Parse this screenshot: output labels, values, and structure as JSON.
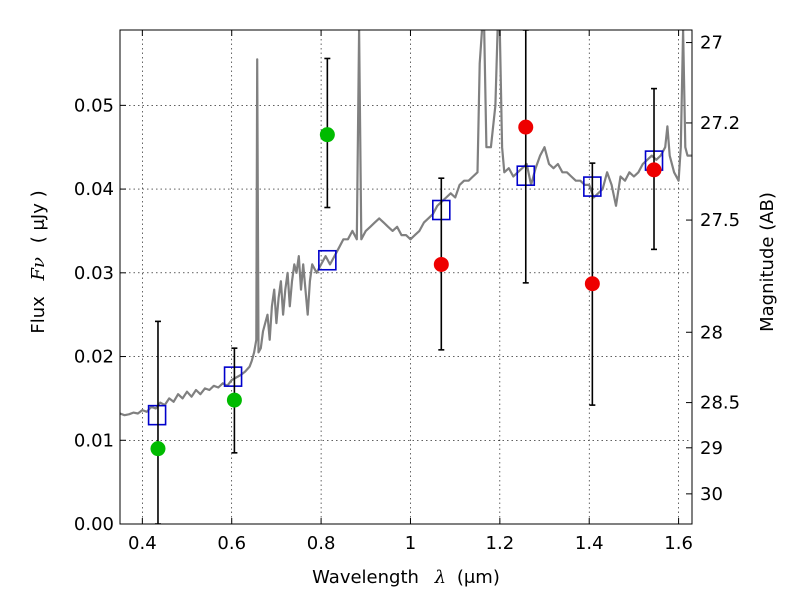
{
  "chart_data": {
    "type": "scatter",
    "xlabel": {
      "text": "Wavelength",
      "symbol": "λ",
      "unit": "(μm)"
    },
    "ylabel": {
      "text": "Flux",
      "symbol": "Fν",
      "unit": "( μJy )"
    },
    "y2label": "Magnitude (AB)",
    "xlim": [
      0.35,
      1.63
    ],
    "ylim": [
      0.0,
      0.059
    ],
    "grid": true,
    "x_ticks": [
      0.4,
      0.6,
      0.8,
      1.0,
      1.2,
      1.4,
      1.6
    ],
    "x_tick_labels": [
      "0.4",
      "0.6",
      "0.8",
      "1",
      "1.2",
      "1.4",
      "1.6"
    ],
    "y_ticks": [
      0.0,
      0.01,
      0.02,
      0.03,
      0.04,
      0.05
    ],
    "y_tick_labels": [
      "0.00",
      "0.01",
      "0.02",
      "0.03",
      "0.04",
      "0.05"
    ],
    "y2_ticks": [
      {
        "flux": 0.0575,
        "label": "27"
      },
      {
        "flux": 0.0479,
        "label": "27.2"
      },
      {
        "flux": 0.0363,
        "label": "27.5"
      },
      {
        "flux": 0.0229,
        "label": "28"
      },
      {
        "flux": 0.0145,
        "label": "28.5"
      },
      {
        "flux": 0.0091,
        "label": "29"
      },
      {
        "flux": 0.0036,
        "label": "30"
      }
    ],
    "series": [
      {
        "kind": "line",
        "color": "#808080",
        "points": [
          [
            0.35,
            0.0132
          ],
          [
            0.36,
            0.013
          ],
          [
            0.37,
            0.0131
          ],
          [
            0.38,
            0.0133
          ],
          [
            0.39,
            0.0132
          ],
          [
            0.4,
            0.0136
          ],
          [
            0.41,
            0.0134
          ],
          [
            0.42,
            0.014
          ],
          [
            0.43,
            0.0138
          ],
          [
            0.44,
            0.0145
          ],
          [
            0.45,
            0.0142
          ],
          [
            0.46,
            0.015
          ],
          [
            0.47,
            0.0146
          ],
          [
            0.48,
            0.0155
          ],
          [
            0.49,
            0.015
          ],
          [
            0.5,
            0.0158
          ],
          [
            0.51,
            0.0152
          ],
          [
            0.52,
            0.016
          ],
          [
            0.53,
            0.0155
          ],
          [
            0.54,
            0.0162
          ],
          [
            0.55,
            0.016
          ],
          [
            0.56,
            0.0165
          ],
          [
            0.57,
            0.0163
          ],
          [
            0.58,
            0.0168
          ],
          [
            0.59,
            0.0165
          ],
          [
            0.6,
            0.0172
          ],
          [
            0.61,
            0.0175
          ],
          [
            0.62,
            0.0178
          ],
          [
            0.63,
            0.0182
          ],
          [
            0.64,
            0.0188
          ],
          [
            0.645,
            0.0195
          ],
          [
            0.65,
            0.0205
          ],
          [
            0.655,
            0.022
          ],
          [
            0.657,
            0.0555
          ],
          [
            0.66,
            0.0205
          ],
          [
            0.665,
            0.021
          ],
          [
            0.67,
            0.023
          ],
          [
            0.675,
            0.024
          ],
          [
            0.68,
            0.025
          ],
          [
            0.685,
            0.022
          ],
          [
            0.69,
            0.026
          ],
          [
            0.695,
            0.028
          ],
          [
            0.7,
            0.024
          ],
          [
            0.705,
            0.027
          ],
          [
            0.71,
            0.029
          ],
          [
            0.715,
            0.025
          ],
          [
            0.72,
            0.028
          ],
          [
            0.725,
            0.03
          ],
          [
            0.73,
            0.026
          ],
          [
            0.735,
            0.029
          ],
          [
            0.74,
            0.031
          ],
          [
            0.745,
            0.03
          ],
          [
            0.75,
            0.032
          ],
          [
            0.755,
            0.028
          ],
          [
            0.76,
            0.031
          ],
          [
            0.77,
            0.025
          ],
          [
            0.775,
            0.029
          ],
          [
            0.78,
            0.031
          ],
          [
            0.79,
            0.03
          ],
          [
            0.8,
            0.031
          ],
          [
            0.81,
            0.032
          ],
          [
            0.82,
            0.031
          ],
          [
            0.83,
            0.032
          ],
          [
            0.84,
            0.033
          ],
          [
            0.85,
            0.034
          ],
          [
            0.86,
            0.034
          ],
          [
            0.87,
            0.035
          ],
          [
            0.88,
            0.034
          ],
          [
            0.885,
            0.059
          ],
          [
            0.89,
            0.034
          ],
          [
            0.9,
            0.035
          ],
          [
            0.91,
            0.0355
          ],
          [
            0.92,
            0.036
          ],
          [
            0.93,
            0.0365
          ],
          [
            0.94,
            0.036
          ],
          [
            0.95,
            0.0355
          ],
          [
            0.96,
            0.035
          ],
          [
            0.97,
            0.0355
          ],
          [
            0.98,
            0.0345
          ],
          [
            0.99,
            0.0345
          ],
          [
            1.0,
            0.034
          ],
          [
            1.01,
            0.0345
          ],
          [
            1.02,
            0.035
          ],
          [
            1.03,
            0.036
          ],
          [
            1.04,
            0.0365
          ],
          [
            1.05,
            0.037
          ],
          [
            1.06,
            0.038
          ],
          [
            1.07,
            0.0385
          ],
          [
            1.08,
            0.039
          ],
          [
            1.09,
            0.0395
          ],
          [
            1.1,
            0.039
          ],
          [
            1.11,
            0.0405
          ],
          [
            1.12,
            0.041
          ],
          [
            1.13,
            0.041
          ],
          [
            1.14,
            0.0415
          ],
          [
            1.15,
            0.042
          ],
          [
            1.155,
            0.055
          ],
          [
            1.16,
            0.059
          ],
          [
            1.165,
            0.059
          ],
          [
            1.17,
            0.045
          ],
          [
            1.18,
            0.045
          ],
          [
            1.19,
            0.05
          ],
          [
            1.195,
            0.059
          ],
          [
            1.2,
            0.059
          ],
          [
            1.205,
            0.045
          ],
          [
            1.21,
            0.042
          ],
          [
            1.22,
            0.0425
          ],
          [
            1.23,
            0.0415
          ],
          [
            1.24,
            0.042
          ],
          [
            1.25,
            0.0425
          ],
          [
            1.26,
            0.043
          ],
          [
            1.27,
            0.0405
          ],
          [
            1.28,
            0.0425
          ],
          [
            1.29,
            0.044
          ],
          [
            1.3,
            0.045
          ],
          [
            1.31,
            0.043
          ],
          [
            1.32,
            0.0425
          ],
          [
            1.33,
            0.043
          ],
          [
            1.34,
            0.042
          ],
          [
            1.35,
            0.042
          ],
          [
            1.36,
            0.0415
          ],
          [
            1.37,
            0.041
          ],
          [
            1.38,
            0.041
          ],
          [
            1.39,
            0.0405
          ],
          [
            1.4,
            0.0405
          ],
          [
            1.41,
            0.039
          ],
          [
            1.42,
            0.0395
          ],
          [
            1.43,
            0.04
          ],
          [
            1.44,
            0.042
          ],
          [
            1.45,
            0.0405
          ],
          [
            1.46,
            0.038
          ],
          [
            1.47,
            0.0415
          ],
          [
            1.48,
            0.041
          ],
          [
            1.49,
            0.042
          ],
          [
            1.5,
            0.0415
          ],
          [
            1.51,
            0.042
          ],
          [
            1.52,
            0.043
          ],
          [
            1.53,
            0.0435
          ],
          [
            1.54,
            0.044
          ],
          [
            1.55,
            0.0435
          ],
          [
            1.56,
            0.044
          ],
          [
            1.57,
            0.045
          ],
          [
            1.575,
            0.0475
          ],
          [
            1.58,
            0.044
          ],
          [
            1.59,
            0.042
          ],
          [
            1.6,
            0.041
          ],
          [
            1.605,
            0.045
          ],
          [
            1.61,
            0.059
          ],
          [
            1.615,
            0.045
          ],
          [
            1.62,
            0.044
          ],
          [
            1.63,
            0.044
          ]
        ]
      },
      {
        "kind": "open-square",
        "color": "#0000cc",
        "points": [
          [
            0.433,
            0.013
          ],
          [
            0.603,
            0.0176
          ],
          [
            0.814,
            0.0315
          ],
          [
            1.069,
            0.0375
          ],
          [
            1.258,
            0.0416
          ],
          [
            1.407,
            0.0403
          ],
          [
            1.545,
            0.0434
          ]
        ]
      },
      {
        "kind": "filled-circle",
        "color": "#00bb00",
        "points": [
          [
            0.435,
            0.009
          ],
          [
            0.606,
            0.0148
          ],
          [
            0.814,
            0.0465
          ]
        ],
        "yerr": [
          [
            0.0,
            0.0242
          ],
          [
            0.0085,
            0.021
          ],
          [
            0.0378,
            0.0556
          ]
        ],
        "errcolor": "#000000"
      },
      {
        "kind": "filled-circle",
        "color": "#ee0000",
        "points": [
          [
            1.069,
            0.031
          ],
          [
            1.258,
            0.0474
          ],
          [
            1.407,
            0.0287
          ],
          [
            1.545,
            0.0423
          ]
        ],
        "yerr": [
          [
            0.0208,
            0.0413
          ],
          [
            0.0288,
            0.059
          ],
          [
            0.0142,
            0.0431
          ],
          [
            0.0328,
            0.052
          ]
        ],
        "errcolor": "#000000"
      }
    ]
  }
}
